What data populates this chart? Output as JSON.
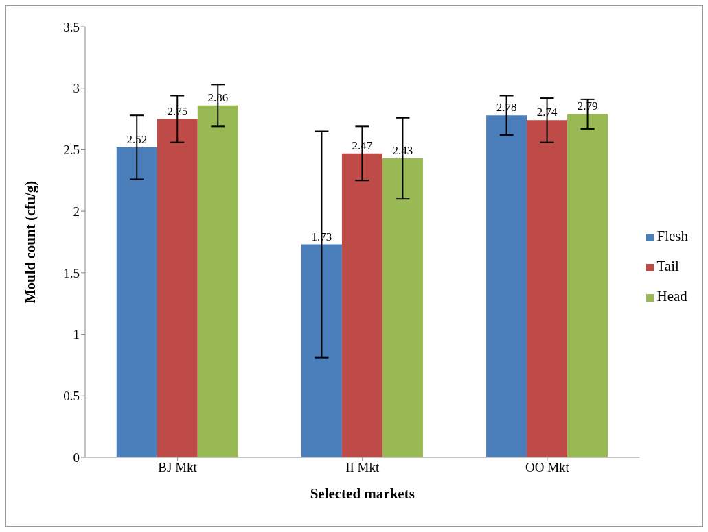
{
  "chart_data": {
    "type": "bar",
    "xlabel": "Selected markets",
    "ylabel": "Mould count (cfu/g)",
    "categories": [
      "BJ Mkt",
      "II Mkt",
      "OO Mkt"
    ],
    "series": [
      {
        "name": "Flesh",
        "color": "#4a7ebb",
        "values": [
          2.52,
          1.73,
          2.78
        ],
        "errors": [
          0.26,
          0.92,
          0.16
        ]
      },
      {
        "name": "Tail",
        "color": "#be4b48",
        "values": [
          2.75,
          2.47,
          2.74
        ],
        "errors": [
          0.19,
          0.22,
          0.18
        ]
      },
      {
        "name": "Head",
        "color": "#98b954",
        "values": [
          2.86,
          2.43,
          2.79
        ],
        "errors": [
          0.17,
          0.33,
          0.12
        ]
      }
    ],
    "ylim": [
      0,
      3.5
    ],
    "yticks": [
      0,
      0.5,
      1,
      1.5,
      2,
      2.5,
      3,
      3.5
    ],
    "grid": false,
    "legend": "right",
    "data_labels": true
  }
}
